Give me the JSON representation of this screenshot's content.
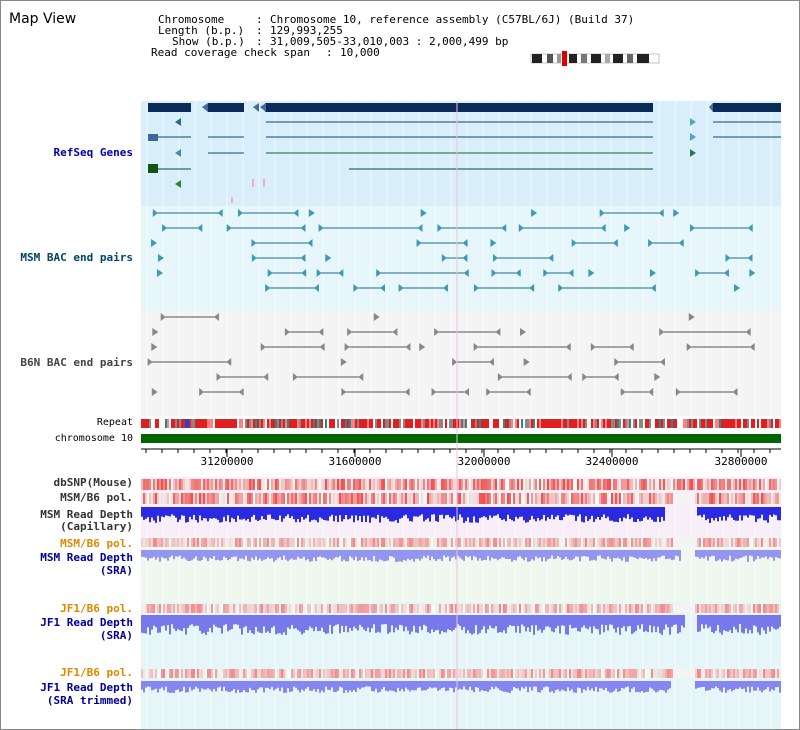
{
  "page": {
    "title": "Map View"
  },
  "header": {
    "chromosome_key": "Chromosome",
    "chromosome_value": "Chromosome 10, reference assembly (C57BL/6J) (Build 37)",
    "length_key": "Length (b.p.)",
    "length_value": "129,993,255",
    "show_key": "Show (b.p.)",
    "show_value": "31,009,505-33,010,003 : 2,000,499 bp",
    "coverage_key": "Read coverage check span",
    "coverage_value": "10,000"
  },
  "tracks": {
    "refseq": "RefSeq Genes",
    "msm_bac": "MSM BAC end pairs",
    "b6n_bac": "B6N BAC end pairs",
    "repeat": "Repeat",
    "chromosome": "chromosome 10",
    "dbsnp": "dbSNP(Mouse)",
    "msm_b6_pol_1": "MSM/B6 pol.",
    "msm_read_depth_cap_1": "MSM Read Depth",
    "msm_read_depth_cap_2": "(Capillary)",
    "msm_b6_pol_2": "MSM/B6 pol.",
    "msm_read_depth_sra_1": "MSM Read Depth",
    "msm_read_depth_sra_2": "(SRA)",
    "jf1_b6_pol_1": "JF1/B6 pol.",
    "jf1_read_depth_sra_1": "JF1 Read Depth",
    "jf1_read_depth_sra_2": "(SRA)",
    "jf1_b6_pol_2": "JF1/B6 pol.",
    "jf1_read_depth_trim_1": "JF1 Read Depth",
    "jf1_read_depth_trim_2": "(SRA trimmed)"
  },
  "axis": {
    "ticks": [
      "31200000",
      "31600000",
      "32000000",
      "32400000",
      "32800000"
    ]
  },
  "colors": {
    "refseq_label": "#0000aa",
    "msm_label": "#004466",
    "b6n_label": "#444444",
    "pol_label_msm": "#000000",
    "pol_label_orange": "#dd8800",
    "depth_label": "#000099",
    "gene_fill": "#0a2a5a",
    "chromosome_bar": "#006600"
  }
}
